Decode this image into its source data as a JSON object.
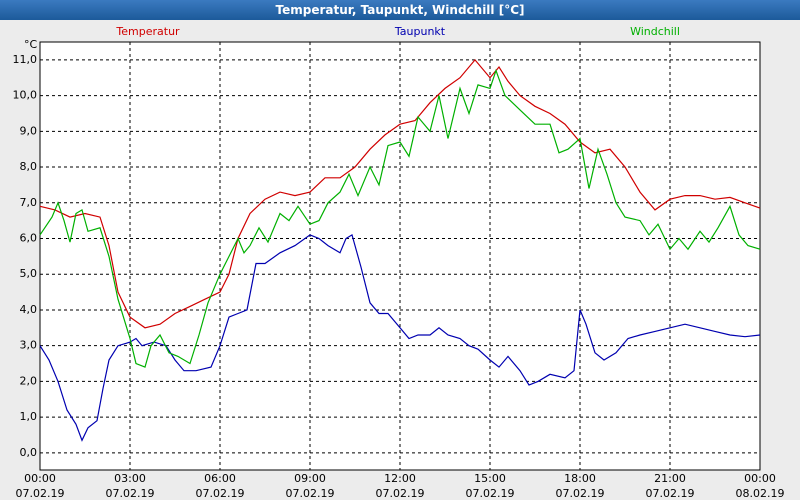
{
  "chart_data": {
    "type": "line",
    "title": "Temperatur, Taupunkt, Windchill [°C]",
    "y_label": "°C",
    "xlim": [
      0,
      24
    ],
    "ylim": [
      -0.48,
      11.5
    ],
    "grid": true,
    "xticks": [
      {
        "value": 0,
        "label": "00:00\n07.02.19"
      },
      {
        "value": 3,
        "label": "03:00\n07.02.19"
      },
      {
        "value": 6,
        "label": "06:00\n07.02.19"
      },
      {
        "value": 9,
        "label": "09:00\n07.02.19"
      },
      {
        "value": 12,
        "label": "12:00\n07.02.19"
      },
      {
        "value": 15,
        "label": "15:00\n07.02.19"
      },
      {
        "value": 18,
        "label": "18:00\n07.02.19"
      },
      {
        "value": 21,
        "label": "21:00\n07.02.19"
      },
      {
        "value": 24,
        "label": "00:00\n08.02.19"
      }
    ],
    "yticks": [
      {
        "value": 0,
        "label": "0,0"
      },
      {
        "value": 1,
        "label": "1,0"
      },
      {
        "value": 2,
        "label": "2,0"
      },
      {
        "value": 3,
        "label": "3,0"
      },
      {
        "value": 4,
        "label": "4,0"
      },
      {
        "value": 5,
        "label": "5,0"
      },
      {
        "value": 6,
        "label": "6,0"
      },
      {
        "value": 7,
        "label": "7,0"
      },
      {
        "value": 8,
        "label": "8,0"
      },
      {
        "value": 9,
        "label": "9,0"
      },
      {
        "value": 10,
        "label": "10,0"
      },
      {
        "value": 11,
        "label": "11,0"
      }
    ],
    "series": [
      {
        "name": "Temperatur",
        "color": "#d00000",
        "x": [
          0,
          0.5,
          1,
          1.5,
          2,
          2.3,
          2.6,
          3,
          3.5,
          4,
          4.5,
          5,
          5.5,
          6,
          6.3,
          6.6,
          7,
          7.5,
          8,
          8.5,
          9,
          9.5,
          10,
          10.5,
          11,
          11.5,
          12,
          12.5,
          13,
          13.5,
          14,
          14.5,
          15,
          15.3,
          15.6,
          16,
          16.5,
          17,
          17.5,
          18,
          18.5,
          19,
          19.5,
          20,
          20.5,
          21,
          21.5,
          22,
          22.5,
          23,
          23.5,
          24
        ],
        "values": [
          6.9,
          6.8,
          6.6,
          6.7,
          6.6,
          5.8,
          4.5,
          3.8,
          3.5,
          3.6,
          3.9,
          4.1,
          4.3,
          4.5,
          5.0,
          6.0,
          6.7,
          7.1,
          7.3,
          7.2,
          7.3,
          7.7,
          7.7,
          8.0,
          8.5,
          8.9,
          9.2,
          9.3,
          9.8,
          10.2,
          10.5,
          11.0,
          10.5,
          10.8,
          10.4,
          10.0,
          9.7,
          9.5,
          9.2,
          8.7,
          8.4,
          8.5,
          8.0,
          7.3,
          6.8,
          7.1,
          7.2,
          7.2,
          7.1,
          7.15,
          7.0,
          6.85
        ]
      },
      {
        "name": "Taupunkt",
        "color": "#0000b0",
        "x": [
          0,
          0.3,
          0.6,
          0.9,
          1.2,
          1.4,
          1.6,
          1.9,
          2.1,
          2.3,
          2.6,
          3,
          3.2,
          3.4,
          3.8,
          4.2,
          4.5,
          4.8,
          5.2,
          5.7,
          6,
          6.3,
          6.6,
          6.9,
          7.2,
          7.5,
          8,
          8.5,
          9,
          9.3,
          9.6,
          10,
          10.2,
          10.4,
          10.7,
          11,
          11.3,
          11.6,
          12,
          12.3,
          12.6,
          13,
          13.3,
          13.6,
          14,
          14.3,
          14.6,
          15,
          15.3,
          15.6,
          16,
          16.3,
          16.6,
          17,
          17.5,
          17.8,
          18,
          18.2,
          18.5,
          18.8,
          19.2,
          19.6,
          20,
          20.5,
          21,
          21.5,
          22,
          22.5,
          23,
          23.5,
          24
        ],
        "values": [
          3.0,
          2.6,
          2.0,
          1.2,
          0.8,
          0.35,
          0.7,
          0.9,
          1.8,
          2.6,
          3.0,
          3.1,
          3.2,
          3.0,
          3.1,
          3.0,
          2.6,
          2.3,
          2.3,
          2.4,
          3.0,
          3.8,
          3.9,
          4.0,
          5.3,
          5.3,
          5.6,
          5.8,
          6.1,
          6.0,
          5.8,
          5.6,
          6.0,
          6.1,
          5.2,
          4.2,
          3.9,
          3.9,
          3.5,
          3.2,
          3.3,
          3.3,
          3.5,
          3.3,
          3.2,
          3.0,
          2.9,
          2.6,
          2.4,
          2.7,
          2.3,
          1.9,
          2.0,
          2.2,
          2.1,
          2.3,
          4.0,
          3.6,
          2.8,
          2.6,
          2.8,
          3.2,
          3.3,
          3.4,
          3.5,
          3.6,
          3.5,
          3.4,
          3.3,
          3.25,
          3.3
        ]
      },
      {
        "name": "Windchill",
        "color": "#00b000",
        "x": [
          0,
          0.4,
          0.6,
          0.8,
          1,
          1.2,
          1.4,
          1.6,
          2,
          2.3,
          2.6,
          3,
          3.2,
          3.5,
          3.7,
          4,
          4.3,
          4.6,
          5,
          5.3,
          5.6,
          6,
          6.3,
          6.6,
          6.8,
          7,
          7.3,
          7.6,
          8,
          8.3,
          8.6,
          9,
          9.3,
          9.6,
          10,
          10.3,
          10.6,
          11,
          11.3,
          11.6,
          12,
          12.3,
          12.6,
          13,
          13.3,
          13.6,
          14,
          14.3,
          14.6,
          15,
          15.2,
          15.5,
          16,
          16.5,
          17,
          17.3,
          17.6,
          18,
          18.3,
          18.6,
          18.9,
          19.2,
          19.5,
          20,
          20.3,
          20.6,
          21,
          21.3,
          21.6,
          22,
          22.3,
          22.6,
          23,
          23.3,
          23.6,
          24
        ],
        "values": [
          6.1,
          6.6,
          7.0,
          6.5,
          5.9,
          6.7,
          6.8,
          6.2,
          6.3,
          5.5,
          4.3,
          3.2,
          2.5,
          2.4,
          3.0,
          3.3,
          2.8,
          2.7,
          2.5,
          3.3,
          4.2,
          5.0,
          5.5,
          6.0,
          5.6,
          5.8,
          6.3,
          5.9,
          6.7,
          6.5,
          6.9,
          6.4,
          6.5,
          7.0,
          7.3,
          7.8,
          7.2,
          8.0,
          7.5,
          8.6,
          8.7,
          8.3,
          9.4,
          9.0,
          10.0,
          8.8,
          10.2,
          9.5,
          10.3,
          10.2,
          10.7,
          10.0,
          9.6,
          9.2,
          9.2,
          8.4,
          8.5,
          8.8,
          7.4,
          8.5,
          7.8,
          7.0,
          6.6,
          6.5,
          6.1,
          6.4,
          5.7,
          6.0,
          5.7,
          6.2,
          5.9,
          6.3,
          6.9,
          6.1,
          5.8,
          5.7
        ]
      }
    ]
  }
}
